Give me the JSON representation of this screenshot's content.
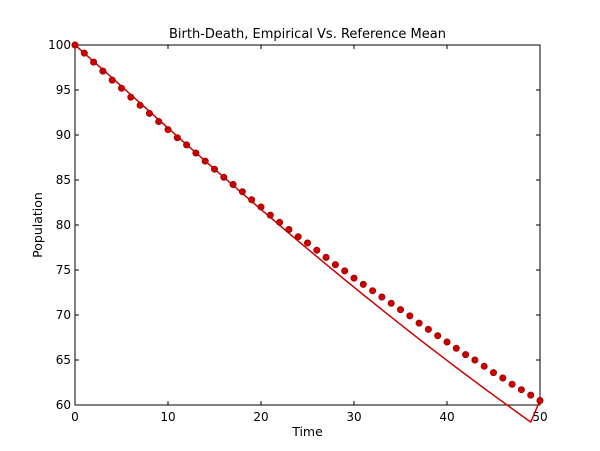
{
  "chart_data": {
    "type": "line",
    "title": "Birth-Death, Empirical Vs. Reference Mean",
    "xlabel": "Time",
    "ylabel": "Population",
    "xlim": [
      0,
      50
    ],
    "ylim": [
      60,
      100
    ],
    "xticks": [
      0,
      10,
      20,
      30,
      40,
      50
    ],
    "yticks": [
      60,
      65,
      70,
      75,
      80,
      85,
      90,
      95,
      100
    ],
    "grid": false,
    "legend": "none",
    "series": [
      {
        "style": "line",
        "color": "#cc0000",
        "x": [
          0,
          1,
          2,
          3,
          4,
          5,
          6,
          7,
          8,
          9,
          10,
          11,
          12,
          13,
          14,
          15,
          16,
          17,
          18,
          19,
          20,
          21,
          22,
          23,
          24,
          25,
          26,
          27,
          28,
          29,
          30,
          31,
          32,
          33,
          34,
          35,
          36,
          37,
          38,
          39,
          40,
          41,
          42,
          43,
          44,
          45,
          46,
          47,
          48,
          49,
          50
        ],
        "values": [
          100.0,
          99.09,
          98.18,
          97.26,
          96.34,
          95.41,
          94.48,
          93.56,
          92.63,
          91.7,
          90.78,
          89.86,
          88.94,
          88.03,
          87.12,
          86.21,
          85.31,
          84.41,
          83.51,
          82.62,
          81.73,
          80.85,
          79.97,
          79.09,
          78.22,
          77.35,
          76.49,
          75.63,
          74.78,
          73.93,
          73.09,
          72.25,
          71.42,
          70.59,
          69.77,
          68.95,
          68.14,
          67.33,
          66.53,
          65.74,
          64.95,
          64.17,
          63.39,
          62.62,
          61.85,
          61.09,
          60.34,
          59.59,
          58.85,
          58.11,
          60.5
        ]
      },
      {
        "style": "markers",
        "color": "#cc0000",
        "x": [
          0,
          1,
          2,
          3,
          4,
          5,
          6,
          7,
          8,
          9,
          10,
          11,
          12,
          13,
          14,
          15,
          16,
          17,
          18,
          19,
          20,
          21,
          22,
          23,
          24,
          25,
          26,
          27,
          28,
          29,
          30,
          31,
          32,
          33,
          34,
          35,
          36,
          37,
          38,
          39,
          40,
          41,
          42,
          43,
          44,
          45,
          46,
          47,
          48,
          49,
          50
        ],
        "values": [
          100.0,
          99.1,
          98.1,
          97.1,
          96.1,
          95.2,
          94.2,
          93.3,
          92.4,
          91.5,
          90.6,
          89.7,
          88.9,
          88.0,
          87.1,
          86.2,
          85.3,
          84.5,
          83.7,
          82.8,
          82.0,
          81.1,
          80.3,
          79.5,
          78.7,
          78.0,
          77.2,
          76.4,
          75.6,
          74.9,
          74.1,
          73.4,
          72.7,
          72.0,
          71.3,
          70.6,
          69.9,
          69.1,
          68.4,
          67.7,
          67.0,
          66.3,
          65.6,
          65.0,
          64.3,
          63.6,
          63.0,
          62.3,
          61.7,
          61.1,
          60.5
        ]
      }
    ]
  }
}
